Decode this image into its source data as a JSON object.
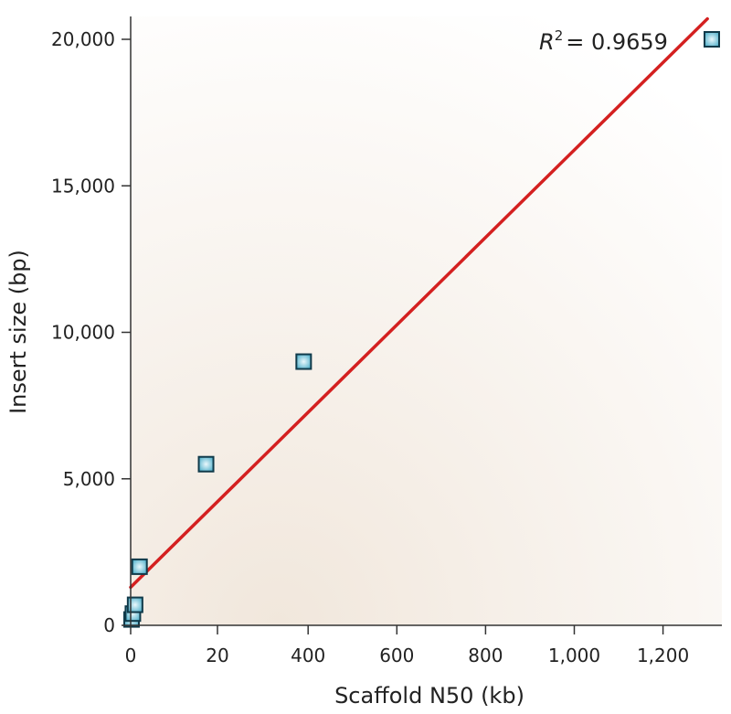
{
  "chart_data": {
    "type": "scatter",
    "xlabel": "Scaffold N50 (kb)",
    "ylabel": "Insert size (bp)",
    "xticks": [
      {
        "value": 0,
        "label": "0"
      },
      {
        "value": 20,
        "label": "20"
      },
      {
        "value": 400,
        "label": "400"
      },
      {
        "value": 600,
        "label": "600"
      },
      {
        "value": 800,
        "label": "800"
      },
      {
        "value": 1000,
        "label": "1,000"
      },
      {
        "value": 1200,
        "label": "1,200"
      }
    ],
    "yticks": [
      {
        "value": 0,
        "label": "0"
      },
      {
        "value": 5000,
        "label": "5,000"
      },
      {
        "value": 10000,
        "label": "10,000"
      },
      {
        "value": 15000,
        "label": "15,000"
      },
      {
        "value": 20000,
        "label": "20,000"
      }
    ],
    "points": [
      {
        "x": 2,
        "y": 200
      },
      {
        "x": 5,
        "y": 400
      },
      {
        "x": 10,
        "y": 700
      },
      {
        "x": 20,
        "y": 2000
      },
      {
        "x": 170,
        "y": 5500
      },
      {
        "x": 390,
        "y": 9000
      },
      {
        "x": 1310,
        "y": 20000
      }
    ],
    "trendline": {
      "x": [
        0,
        1300
      ],
      "y": [
        1300,
        20700
      ]
    },
    "annotation": {
      "var": "R",
      "exp": "2",
      "text": "= 0.9659"
    },
    "colors": {
      "marker_fill": "#4fb3cf",
      "marker_edge": "#103a4a",
      "trendline": "#d42020",
      "axis": "#333333"
    }
  }
}
